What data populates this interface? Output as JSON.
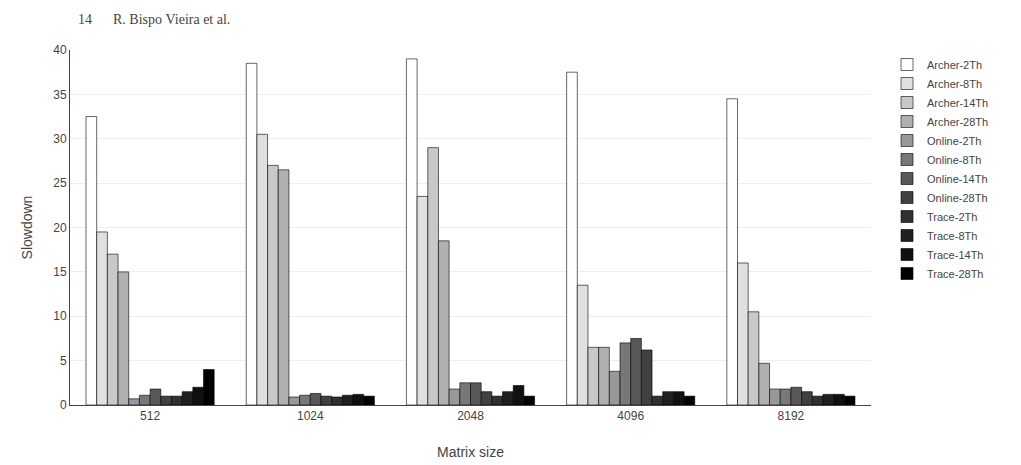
{
  "chart_data": {
    "type": "bar",
    "title": "14      R. Bispo Vieira et al.",
    "categories": [
      "512",
      "1024",
      "2048",
      "4096",
      "8192"
    ],
    "series": [
      {
        "name": "Archer-2Th",
        "color": "#ffffff",
        "values": [
          32.5,
          38.5,
          39.0,
          37.5,
          34.5
        ]
      },
      {
        "name": "Archer-8Th",
        "color": "#e0e0e0",
        "values": [
          19.5,
          30.5,
          23.5,
          13.5,
          16.0
        ]
      },
      {
        "name": "Archer-14Th",
        "color": "#c8c8c8",
        "values": [
          17.0,
          27.0,
          29.0,
          6.5,
          10.5
        ]
      },
      {
        "name": "Archer-28Th",
        "color": "#b0b0b0",
        "values": [
          15.0,
          26.5,
          18.5,
          6.5,
          4.7
        ]
      },
      {
        "name": "Online-2Th",
        "color": "#989898",
        "values": [
          0.7,
          0.9,
          1.8,
          3.8,
          1.8
        ]
      },
      {
        "name": "Online-8Th",
        "color": "#787878",
        "values": [
          1.1,
          1.1,
          2.5,
          7.0,
          1.8
        ]
      },
      {
        "name": "Online-14Th",
        "color": "#585858",
        "values": [
          1.8,
          1.3,
          2.5,
          7.5,
          2.0
        ]
      },
      {
        "name": "Online-28Th",
        "color": "#404040",
        "values": [
          1.0,
          1.0,
          1.5,
          6.2,
          1.5
        ]
      },
      {
        "name": "Trace-2Th",
        "color": "#303030",
        "values": [
          1.0,
          0.9,
          1.0,
          1.0,
          1.0
        ]
      },
      {
        "name": "Trace-8Th",
        "color": "#202020",
        "values": [
          1.5,
          1.1,
          1.5,
          1.5,
          1.2
        ]
      },
      {
        "name": "Trace-14Th",
        "color": "#101010",
        "values": [
          2.0,
          1.2,
          2.2,
          1.5,
          1.2
        ]
      },
      {
        "name": "Trace-28Th",
        "color": "#000000",
        "values": [
          4.0,
          1.0,
          1.0,
          1.0,
          1.0
        ]
      }
    ],
    "xlabel": "Matrix size",
    "ylabel": "Slowdown",
    "ylim": [
      0,
      40
    ],
    "yticks": [
      0,
      5,
      10,
      15,
      20,
      25,
      30,
      35,
      40
    ],
    "grid": true,
    "legend": "upper right"
  }
}
